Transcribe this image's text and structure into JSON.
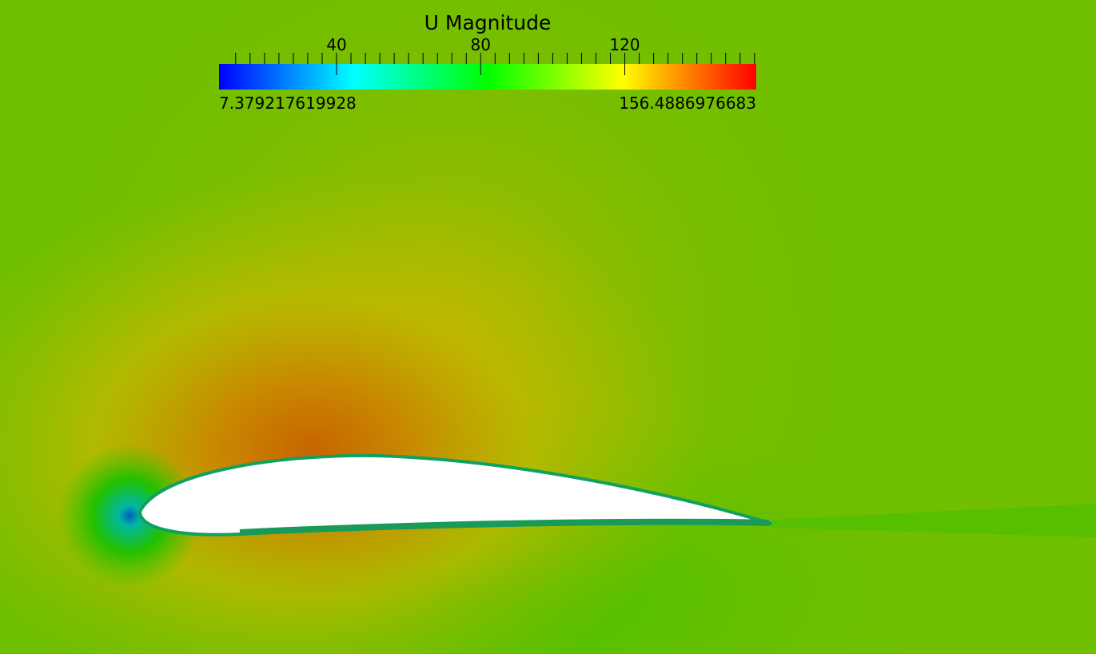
{
  "legend": {
    "title": "U Magnitude",
    "range": [
      7.379217619928,
      156.4886976683
    ],
    "ticks": [
      40,
      80,
      120
    ],
    "minor_ticks": [
      12,
      16,
      20,
      24,
      28,
      32,
      36,
      44,
      48,
      52,
      56,
      60,
      64,
      68,
      72,
      76,
      84,
      88,
      92,
      96,
      100,
      104,
      108,
      112,
      116,
      124,
      128,
      132,
      136,
      140,
      144,
      148,
      152,
      156
    ],
    "colors": [
      "#0000ff",
      "#00ffff",
      "#00ff00",
      "#ffff00",
      "#ff0000"
    ]
  }
}
